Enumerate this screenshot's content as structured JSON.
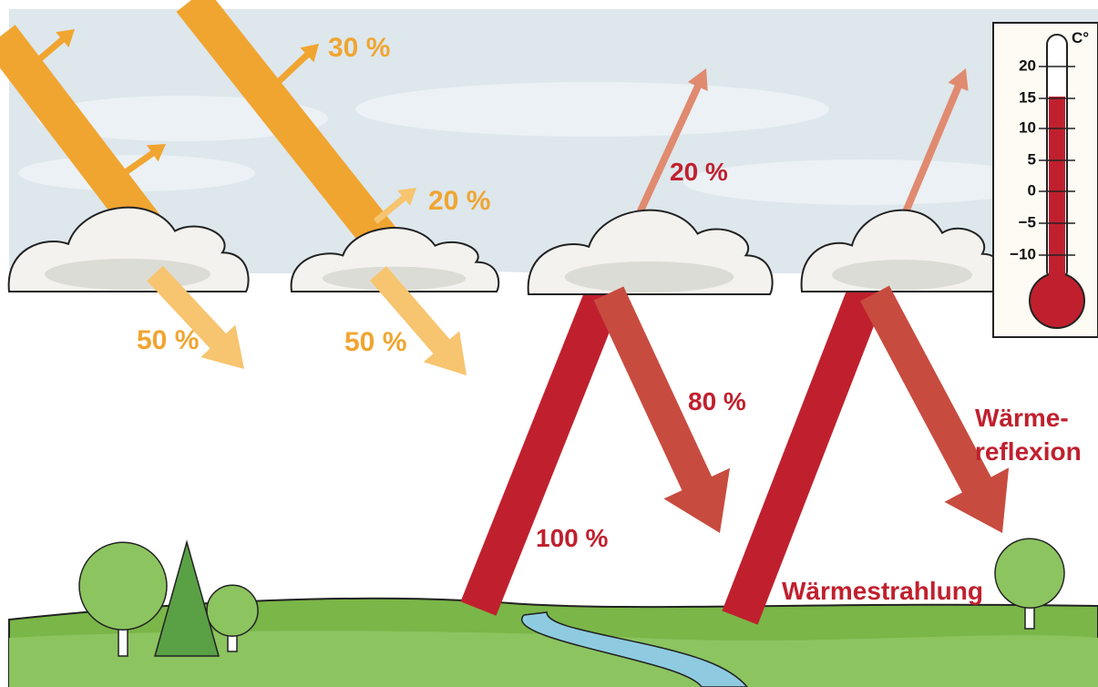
{
  "labels": {
    "sun_reflect_top": "30 %",
    "sun_reflect_mid": "20 %",
    "sun_through_left": "50 %",
    "sun_through_right": "50 %",
    "heat_escape": "20 %",
    "heat_reflected": "80 %",
    "heat_emitted": "100 %",
    "heat_reflection": [
      "Wärme-",
      "reflexion"
    ],
    "heat_radiation": "Wärmestrahlung"
  },
  "thermometer": {
    "unit": "C°",
    "ticks": [
      "20",
      "15",
      "10",
      "5",
      "0",
      "−5",
      "−10"
    ]
  }
}
